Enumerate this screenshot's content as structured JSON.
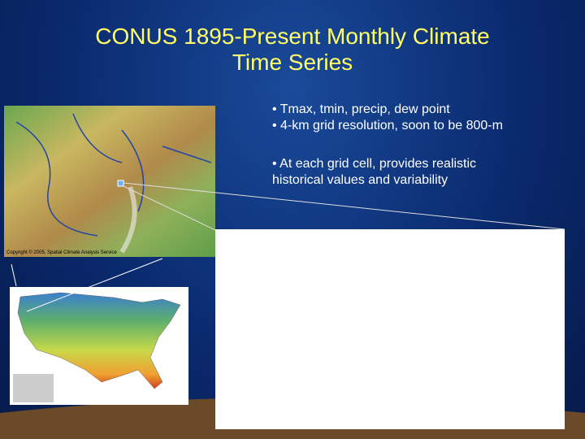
{
  "slide": {
    "title_lines": [
      "CONUS 1895-Present Monthly Climate",
      "Time Series"
    ],
    "bullets": [
      "• Tmax, tmin, precip, dew point",
      "• 4-km grid resolution, soon to be 800-m",
      "• At each grid cell, provides realistic historical values and variability"
    ],
    "map_credit": "Copyright © 2005, Spatial Climate Analysis Service"
  }
}
